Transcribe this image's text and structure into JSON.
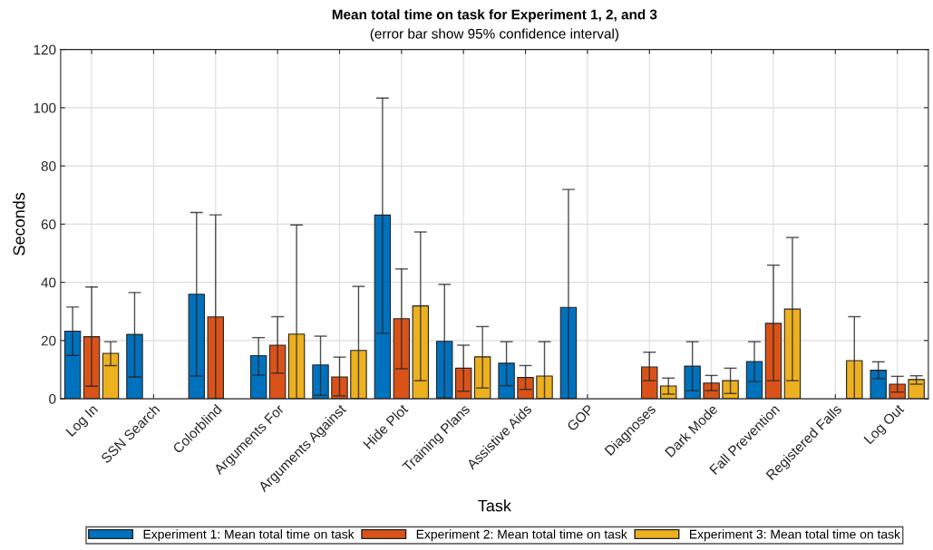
{
  "chart_data": {
    "type": "bar",
    "title": "Mean total time on task for Experiment 1, 2, and 3",
    "subtitle": "(error bar show 95% confidence interval)",
    "xlabel": "Task",
    "ylabel": "Seconds",
    "categories": [
      "Log In",
      "SSN Search",
      "Colorblind",
      "Arguments For",
      "Arguments Against",
      "Hide Plot",
      "Training Plans",
      "Assistive Aids",
      "GOP",
      "Diagnoses",
      "Dark Mode",
      "Fall Prevention",
      "Registered Falls",
      "Log Out"
    ],
    "series": [
      {
        "name": "Experiment 1: Mean total time on task",
        "color": "#0072bd",
        "values": [
          23.2,
          22.1,
          35.9,
          14.8,
          11.6,
          63.1,
          19.7,
          12.2,
          31.4,
          null,
          11.2,
          12.8,
          null,
          9.8
        ],
        "errors": [
          [
            14.9,
            31.5
          ],
          [
            7.5,
            36.5
          ],
          [
            7.8,
            64.0
          ],
          [
            8.1,
            21.0
          ],
          [
            1.2,
            21.5
          ],
          [
            22.5,
            103.3
          ],
          [
            0.3,
            39.3
          ],
          [
            4.5,
            19.6
          ],
          [
            0,
            71.9
          ],
          null,
          [
            2.8,
            19.6
          ],
          [
            5.9,
            19.6
          ],
          null,
          [
            6.9,
            12.7
          ]
        ]
      },
      {
        "name": "Experiment 2: Mean total time on task",
        "color": "#d95319",
        "values": [
          21.3,
          null,
          28.1,
          18.4,
          7.5,
          27.5,
          10.5,
          7.3,
          null,
          10.9,
          5.4,
          25.9,
          null,
          5.0
        ],
        "errors": [
          [
            4.3,
            38.4
          ],
          null,
          [
            0,
            63.2
          ],
          [
            8.8,
            28.2
          ],
          [
            1.0,
            14.3
          ],
          [
            10.3,
            44.6
          ],
          [
            2.6,
            18.4
          ],
          [
            3.2,
            11.4
          ],
          null,
          [
            6.2,
            16.0
          ],
          [
            2.8,
            8.0
          ],
          [
            6.2,
            45.9
          ],
          null,
          [
            2.3,
            7.7
          ]
        ]
      },
      {
        "name": "Experiment 3: Mean total time on task",
        "color": "#edb120",
        "values": [
          15.6,
          null,
          null,
          22.2,
          16.6,
          31.9,
          14.4,
          7.8,
          null,
          4.4,
          6.2,
          30.8,
          13.1,
          6.6
        ],
        "errors": [
          [
            11.4,
            19.6
          ],
          null,
          null,
          [
            0,
            59.7
          ],
          [
            0,
            38.6
          ],
          [
            6.2,
            57.3
          ],
          [
            3.7,
            24.8
          ],
          [
            0,
            19.6
          ],
          null,
          [
            1.6,
            7.1
          ],
          [
            1.8,
            10.5
          ],
          [
            6.2,
            55.4
          ],
          [
            0,
            28.2
          ],
          [
            5.0,
            7.9
          ]
        ]
      }
    ],
    "ylim": [
      0,
      120
    ],
    "yticks": [
      0,
      20,
      40,
      60,
      80,
      100,
      120
    ],
    "grid": true,
    "legend": "bottom"
  }
}
